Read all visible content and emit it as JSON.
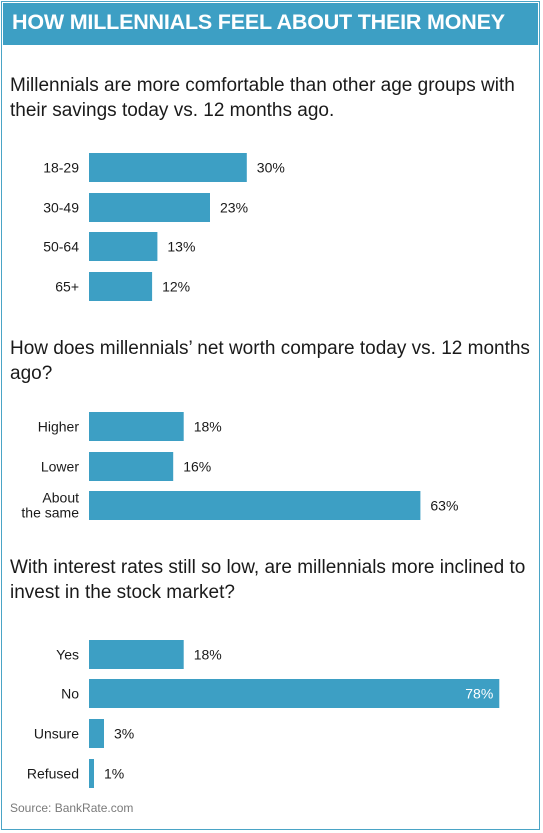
{
  "header": {
    "title": "HOW MILLENNIALS FEEL ABOUT THEIR MONEY"
  },
  "source": "Source: BankRate.com",
  "colors": {
    "accent": "#3d9fc4",
    "bar": "#3d9fc4",
    "text": "#1a1a1a"
  },
  "chart_data": [
    {
      "type": "bar",
      "orientation": "horizontal",
      "title": "Millennials are more comfortable than other age groups with their savings today vs. 12 months ago.",
      "categories": [
        "18-29",
        "30-49",
        "50-64",
        "65+"
      ],
      "values": [
        30,
        23,
        13,
        12
      ],
      "labels": [
        "30%",
        "23%",
        "13%",
        "12%"
      ],
      "unit": "%",
      "xlim": [
        0,
        100
      ]
    },
    {
      "type": "bar",
      "orientation": "horizontal",
      "title": "How does millennials’ net worth compare today vs. 12 months ago?",
      "categories": [
        "Higher",
        "Lower",
        "About the same"
      ],
      "values": [
        18,
        16,
        63
      ],
      "labels": [
        "18%",
        "16%",
        "63%"
      ],
      "unit": "%",
      "xlim": [
        0,
        100
      ]
    },
    {
      "type": "bar",
      "orientation": "horizontal",
      "title": "With interest rates still so low, are millennials more inclined to invest in the stock market?",
      "categories": [
        "Yes",
        "No",
        "Unsure",
        "Refused"
      ],
      "values": [
        18,
        78,
        3,
        1
      ],
      "labels": [
        "18%",
        "78%",
        "3%",
        "1%"
      ],
      "unit": "%",
      "xlim": [
        0,
        100
      ]
    }
  ]
}
